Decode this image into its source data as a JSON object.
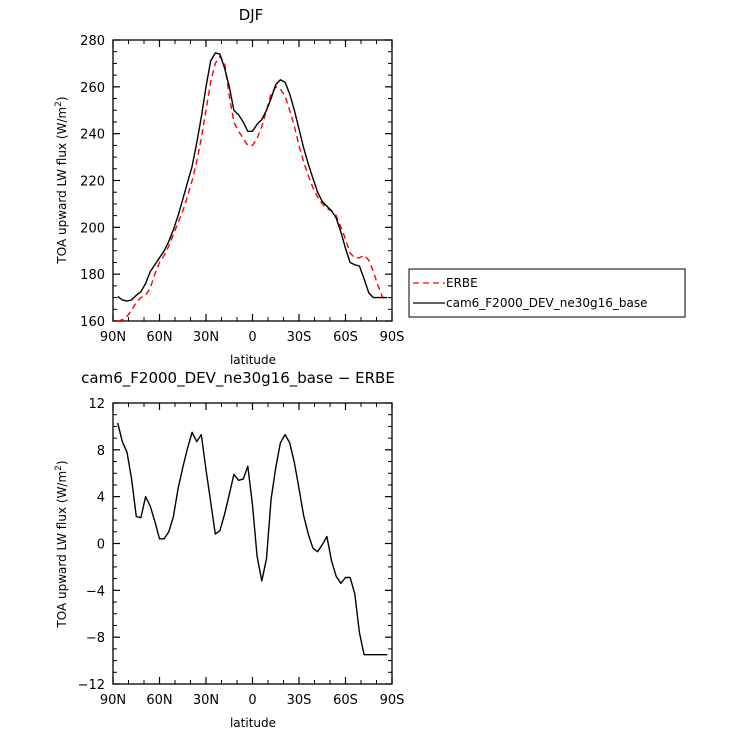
{
  "chart_data": [
    {
      "type": "line",
      "title": "DJF",
      "xlabel": "latitude",
      "ylabel": "TOA upward LW flux (W/m²)",
      "ylabel_parts": [
        "TOA upward LW flux (W/m",
        "2",
        ")"
      ],
      "xlim": [
        90,
        -90
      ],
      "ylim": [
        160,
        280
      ],
      "xticks": [
        90,
        60,
        30,
        0,
        -30,
        -60,
        -90
      ],
      "xtick_labels": [
        "90N",
        "60N",
        "30N",
        "0",
        "30S",
        "60S",
        "90S"
      ],
      "yticks": [
        160,
        180,
        200,
        220,
        240,
        260,
        280
      ],
      "ytick_labels": [
        "160",
        "180",
        "200",
        "220",
        "240",
        "260",
        "280"
      ],
      "legend_placement": "right",
      "series": [
        {
          "name": "ERBE",
          "color": "#ff0000",
          "dash": "dashed",
          "x": [
            87,
            84,
            81,
            78,
            75,
            72,
            69,
            66,
            63,
            60,
            57,
            54,
            51,
            48,
            45,
            42,
            39,
            36,
            33,
            30,
            27,
            24,
            21,
            18,
            15,
            12,
            9,
            6,
            3,
            0,
            -3,
            -6,
            -9,
            -12,
            -15,
            -18,
            -21,
            -24,
            -27,
            -30,
            -33,
            -36,
            -39,
            -42,
            -45,
            -48,
            -51,
            -54,
            -57,
            -60,
            -63,
            -66,
            -69,
            -72,
            -75,
            -78,
            -81,
            -84,
            -87
          ],
          "y": [
            160,
            160.5,
            162,
            164.5,
            168,
            170,
            171,
            174,
            180,
            185,
            188,
            192,
            197,
            202,
            207,
            213,
            220,
            228,
            238,
            250,
            262,
            270,
            273,
            270,
            256,
            245,
            241,
            238,
            235,
            235,
            238,
            243,
            250,
            257,
            260,
            259,
            256,
            250,
            243,
            235,
            228,
            222,
            217,
            213,
            210,
            208,
            207,
            205,
            200,
            195,
            189,
            187,
            187,
            188,
            186,
            181,
            175,
            170,
            170
          ]
        },
        {
          "name": "cam6_F2000_DEV_ne30g16_base",
          "color": "#000000",
          "dash": "solid",
          "x": [
            87,
            84,
            81,
            78,
            75,
            72,
            69,
            66,
            63,
            60,
            57,
            54,
            51,
            48,
            45,
            42,
            39,
            36,
            33,
            30,
            27,
            24,
            21,
            18,
            15,
            12,
            9,
            6,
            3,
            0,
            -3,
            -6,
            -9,
            -12,
            -15,
            -18,
            -21,
            -24,
            -27,
            -30,
            -33,
            -36,
            -39,
            -42,
            -45,
            -48,
            -51,
            -54,
            -57,
            -60,
            -63,
            -66,
            -69,
            -72,
            -75,
            -78,
            -81,
            -84,
            -87
          ],
          "y": [
            170.5,
            169,
            168.5,
            169,
            171,
            172.5,
            176,
            181,
            184,
            187,
            190,
            194,
            199,
            205,
            212,
            219,
            226,
            236,
            247,
            260,
            271,
            274.5,
            274,
            268,
            260,
            250,
            248,
            245,
            241,
            241,
            244,
            246,
            250,
            255,
            261,
            263,
            262,
            257,
            250,
            242,
            234,
            227,
            221,
            215,
            211,
            209,
            207,
            204,
            198,
            191,
            185,
            184,
            183.5,
            178,
            172,
            170,
            170,
            170,
            170
          ]
        }
      ]
    },
    {
      "type": "line",
      "title": "cam6_F2000_DEV_ne30g16_base − ERBE",
      "xlabel": "latitude",
      "ylabel": "TOA upward LW flux (W/m²)",
      "ylabel_parts": [
        "TOA upward LW flux (W/m",
        "2",
        ")"
      ],
      "xlim": [
        90,
        -90
      ],
      "ylim": [
        -12,
        12
      ],
      "xticks": [
        90,
        60,
        30,
        0,
        -30,
        -60,
        -90
      ],
      "xtick_labels": [
        "90N",
        "60N",
        "30N",
        "0",
        "30S",
        "60S",
        "90S"
      ],
      "yticks": [
        -12,
        -8,
        -4,
        0,
        4,
        8,
        12
      ],
      "ytick_labels": [
        "−12",
        "−8",
        "−4",
        "0",
        "4",
        "8",
        "12"
      ],
      "series": [
        {
          "color": "#000000",
          "dash": "solid",
          "x": [
            87,
            84,
            81,
            78,
            75,
            72,
            69,
            66,
            63,
            60,
            57,
            54,
            51,
            48,
            45,
            42,
            39,
            36,
            33,
            30,
            27,
            24,
            21,
            18,
            15,
            12,
            9,
            6,
            3,
            0,
            -3,
            -6,
            -9,
            -12,
            -15,
            -18,
            -21,
            -24,
            -27,
            -30,
            -33,
            -36,
            -39,
            -42,
            -45,
            -48,
            -51,
            -54,
            -57,
            -60,
            -63,
            -66,
            -69,
            -72,
            -75,
            -78,
            -81,
            -84,
            -87
          ],
          "y": [
            10.3,
            8.7,
            7.8,
            5.5,
            2.3,
            2.2,
            4,
            3.2,
            1.9,
            0.4,
            0.4,
            1,
            2.3,
            4.7,
            6.5,
            8.1,
            9.5,
            8.7,
            9.3,
            6.3,
            3.6,
            0.8,
            1.1,
            2.5,
            4.2,
            5.9,
            5.4,
            5.5,
            6.6,
            3.3,
            -1.1,
            -3.2,
            -1.3,
            3.8,
            6.5,
            8.6,
            9.3,
            8.6,
            6.9,
            4.7,
            2.4,
            0.8,
            -0.4,
            -0.7,
            -0.1,
            0.6,
            -1.5,
            -2.8,
            -3.4,
            -2.9,
            -2.9,
            -4.3,
            -7.6,
            -9.5,
            -9.5,
            -9.5,
            -9.5,
            -9.5,
            -9.5
          ]
        }
      ]
    }
  ]
}
